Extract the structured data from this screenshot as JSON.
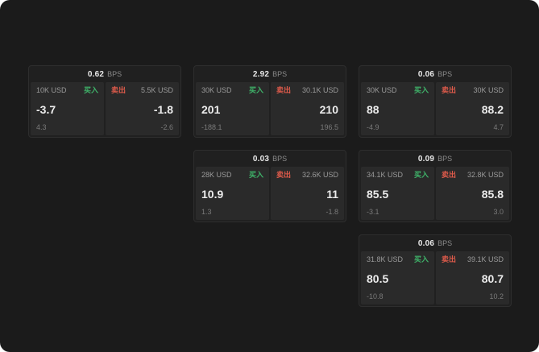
{
  "colors": {
    "background": "#1b1b1b",
    "card": "#202020",
    "panel": "#2a2a2a",
    "buy_green": "#3fb46a",
    "sell_red": "#e05b4b"
  },
  "cards": [
    {
      "bps_value": "0.62",
      "bps_unit": "BPS",
      "buy": {
        "size": "10K USD",
        "label": "买入",
        "price": "-3.7",
        "change": "4.3"
      },
      "sell": {
        "label": "卖出",
        "size": "5.5K USD",
        "price": "-1.8",
        "change": "-2.6"
      }
    },
    {
      "bps_value": "2.92",
      "bps_unit": "BPS",
      "buy": {
        "size": "30K USD",
        "label": "买入",
        "price": "201",
        "change": "-188.1"
      },
      "sell": {
        "label": "卖出",
        "size": "30.1K USD",
        "price": "210",
        "change": "196.5"
      }
    },
    {
      "bps_value": "0.06",
      "bps_unit": "BPS",
      "buy": {
        "size": "30K USD",
        "label": "买入",
        "price": "88",
        "change": "-4.9"
      },
      "sell": {
        "label": "卖出",
        "size": "30K USD",
        "price": "88.2",
        "change": "4.7"
      }
    },
    {
      "bps_value": "0.03",
      "bps_unit": "BPS",
      "buy": {
        "size": "28K USD",
        "label": "买入",
        "price": "10.9",
        "change": "1.3"
      },
      "sell": {
        "label": "卖出",
        "size": "32.6K USD",
        "price": "11",
        "change": "-1.8"
      }
    },
    {
      "bps_value": "0.09",
      "bps_unit": "BPS",
      "buy": {
        "size": "34.1K USD",
        "label": "买入",
        "price": "85.5",
        "change": "-3.1"
      },
      "sell": {
        "label": "卖出",
        "size": "32.8K USD",
        "price": "85.8",
        "change": "3.0"
      }
    },
    {
      "bps_value": "0.06",
      "bps_unit": "BPS",
      "buy": {
        "size": "31.8K USD",
        "label": "买入",
        "price": "80.5",
        "change": "-10.8"
      },
      "sell": {
        "label": "卖出",
        "size": "39.1K USD",
        "price": "80.7",
        "change": "10.2"
      }
    }
  ]
}
